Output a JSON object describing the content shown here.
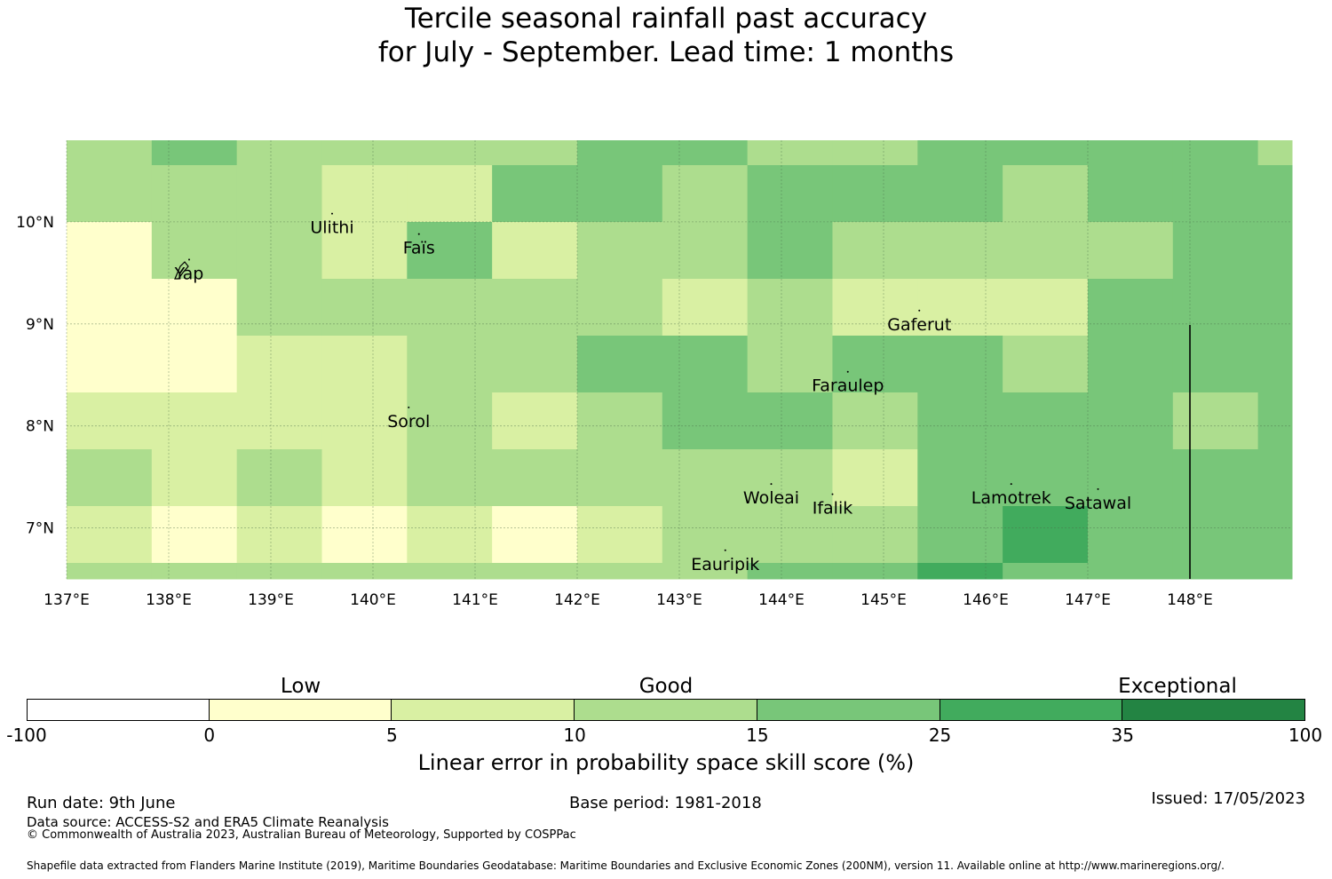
{
  "title": {
    "line1": "Tercile seasonal rainfall past accuracy",
    "line2": "for July - September. Lead time: 1 months"
  },
  "map": {
    "lon_ticks": [
      "137°E",
      "138°E",
      "139°E",
      "140°E",
      "141°E",
      "142°E",
      "143°E",
      "144°E",
      "145°E",
      "146°E",
      "147°E",
      "148°E"
    ],
    "lat_ticks": [
      "10°N",
      "9°N",
      "8°N",
      "7°N"
    ],
    "places": [
      {
        "name": "Ulithi",
        "lon": 139.6,
        "lat": 9.95
      },
      {
        "name": "Yap",
        "lon": 138.2,
        "lat": 9.5
      },
      {
        "name": "Faïs",
        "lon": 140.45,
        "lat": 9.75
      },
      {
        "name": "Gaferut",
        "lon": 145.35,
        "lat": 9.0
      },
      {
        "name": "Faraulep",
        "lon": 144.65,
        "lat": 8.4
      },
      {
        "name": "Sorol",
        "lon": 140.35,
        "lat": 8.05
      },
      {
        "name": "Woleai",
        "lon": 143.9,
        "lat": 7.3
      },
      {
        "name": "Ifalik",
        "lon": 144.5,
        "lat": 7.2
      },
      {
        "name": "Lamotrek",
        "lon": 146.25,
        "lat": 7.3
      },
      {
        "name": "Satawal",
        "lon": 147.1,
        "lat": 7.25
      },
      {
        "name": "Eauripik",
        "lon": 143.45,
        "lat": 6.65
      }
    ],
    "skill_classes_note": "1 = 0-5, 2 = 5-10, 3 = 10-15, 4 = 15-25, 5 = 25-35",
    "grid_rows": [
      [
        3,
        4,
        3,
        3,
        3,
        3,
        4,
        4,
        3,
        3,
        4,
        4,
        4,
        4,
        3
      ],
      [
        3,
        3,
        3,
        2,
        2,
        4,
        4,
        3,
        4,
        4,
        4,
        3,
        4,
        4,
        4
      ],
      [
        1,
        3,
        3,
        2,
        4,
        2,
        3,
        3,
        4,
        3,
        3,
        3,
        3,
        4,
        4
      ],
      [
        1,
        1,
        3,
        3,
        3,
        3,
        3,
        2,
        3,
        2,
        2,
        2,
        4,
        4,
        4
      ],
      [
        1,
        1,
        2,
        2,
        3,
        3,
        4,
        4,
        3,
        4,
        4,
        3,
        4,
        4,
        4
      ],
      [
        2,
        2,
        2,
        2,
        3,
        2,
        3,
        4,
        4,
        3,
        4,
        4,
        4,
        3,
        4
      ],
      [
        3,
        2,
        3,
        2,
        3,
        3,
        3,
        3,
        3,
        2,
        4,
        4,
        4,
        4,
        4
      ],
      [
        2,
        1,
        2,
        1,
        2,
        1,
        2,
        3,
        3,
        3,
        4,
        5,
        4,
        4,
        4
      ],
      [
        3,
        3,
        3,
        3,
        3,
        3,
        3,
        3,
        4,
        4,
        5,
        4,
        4,
        4,
        4
      ]
    ],
    "colors": {
      "0": "#ffffff",
      "1": "#ffffcc",
      "2": "#d9f0a3",
      "3": "#addd8e",
      "4": "#78c679",
      "5": "#41ab5d",
      "6": "#238443"
    }
  },
  "colorbar": {
    "ticks": [
      "-100",
      "0",
      "5",
      "10",
      "15",
      "25",
      "35",
      "100"
    ],
    "categories": [
      "Low",
      "Good",
      "Exceptional"
    ],
    "label": "Linear error in probability space skill score (%)"
  },
  "footer": {
    "run_date": "Run date: 9th June",
    "base_period": "Base period: 1981-2018",
    "issued": "Issued: 17/05/2023",
    "data_source": "Data source: ACCESS-S2 and ERA5 Climate Reanalysis",
    "copyright": "© Commonwealth of Australia 2023, Australian Bureau of Meteorology, Supported by COSPPac",
    "shapefile": "Shapefile data extracted from Flanders Marine Institute (2019), Maritime Boundaries Geodatabase: Maritime Boundaries and Exclusive Economic Zones (200NM), version 11. Available online at http://www.marineregions.org/."
  }
}
